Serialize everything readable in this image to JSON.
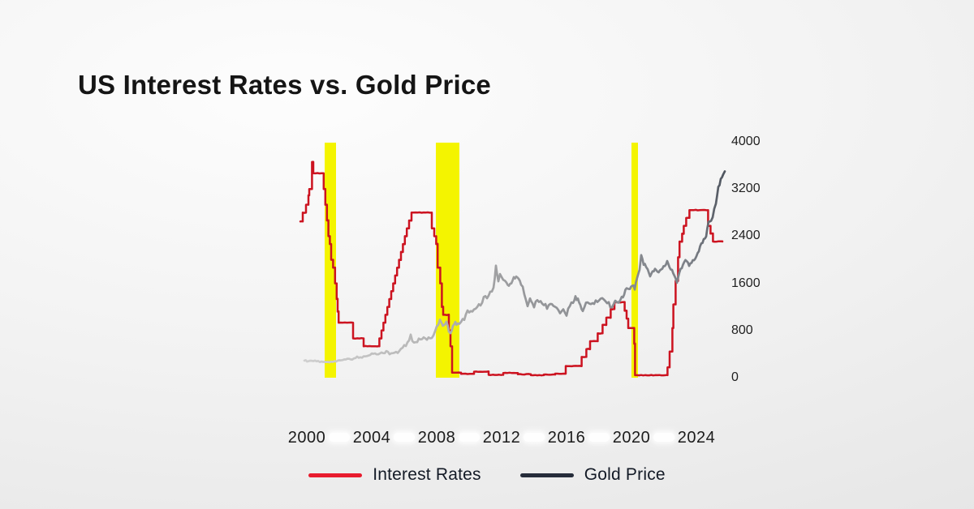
{
  "title": "US Interest Rates vs. Gold Price",
  "colors": {
    "background_edge": "#e2e2e2",
    "background_center": "#fdfdfd",
    "recession_band": "#f4f400",
    "interest_rates_line": "#cc1320",
    "interest_rates_legend": "#e81c2e",
    "gold_legend": "#262c3a",
    "gold_gradient": [
      "#d0d0d0",
      "#b6b6b6",
      "#97989b",
      "#8a8d92",
      "#7c8087",
      "#4e545e"
    ],
    "axis_text": "#1f1f1f",
    "title_text": "#151515"
  },
  "y_axis": {
    "side": "right",
    "labels": [
      "4000",
      "3200",
      "2400",
      "1600",
      "800",
      "0"
    ]
  },
  "x_axis": {
    "labels": [
      "2000",
      "2004",
      "2008",
      "2012",
      "2016",
      "2020",
      "2024"
    ]
  },
  "legend": [
    {
      "label": "Interest Rates",
      "color": "#e81c2e"
    },
    {
      "label": "Gold Price",
      "color": "#262c3a"
    }
  ],
  "chart_data": {
    "type": "line",
    "title": "US Interest Rates vs. Gold Price",
    "xlim": [
      1999.6,
      2025.75
    ],
    "ylim_gold_usd": [
      0,
      4000
    ],
    "hidden_rate_axis_max_pct": 7.5,
    "grid": false,
    "legend_position": "bottom",
    "recession_bands": [
      [
        2001.1,
        2001.8
      ],
      [
        2007.95,
        2009.4
      ],
      [
        2020.0,
        2020.4
      ]
    ],
    "series": [
      {
        "name": "Interest Rates",
        "unit": "percent",
        "style": "step-after",
        "points": [
          [
            1999.6,
            4.97
          ],
          [
            1999.75,
            5.25
          ],
          [
            1999.95,
            5.5
          ],
          [
            2000.1,
            5.8
          ],
          [
            2000.15,
            6.0
          ],
          [
            2000.32,
            6.86
          ],
          [
            2000.4,
            6.5
          ],
          [
            2001.04,
            6.0
          ],
          [
            2001.14,
            5.5
          ],
          [
            2001.24,
            5.0
          ],
          [
            2001.33,
            4.5
          ],
          [
            2001.42,
            4.25
          ],
          [
            2001.5,
            3.75
          ],
          [
            2001.62,
            3.5
          ],
          [
            2001.74,
            3.0
          ],
          [
            2001.84,
            2.5
          ],
          [
            2001.9,
            2.1
          ],
          [
            2001.96,
            1.75
          ],
          [
            2002.85,
            1.25
          ],
          [
            2003.5,
            1.0
          ],
          [
            2004.47,
            1.25
          ],
          [
            2004.6,
            1.5
          ],
          [
            2004.72,
            1.75
          ],
          [
            2004.84,
            2.0
          ],
          [
            2004.96,
            2.25
          ],
          [
            2005.08,
            2.5
          ],
          [
            2005.2,
            2.75
          ],
          [
            2005.32,
            3.0
          ],
          [
            2005.44,
            3.25
          ],
          [
            2005.56,
            3.5
          ],
          [
            2005.68,
            3.75
          ],
          [
            2005.8,
            4.0
          ],
          [
            2005.92,
            4.25
          ],
          [
            2006.04,
            4.5
          ],
          [
            2006.16,
            4.75
          ],
          [
            2006.3,
            5.0
          ],
          [
            2006.45,
            5.25
          ],
          [
            2007.7,
            4.75
          ],
          [
            2007.85,
            4.5
          ],
          [
            2007.97,
            4.25
          ],
          [
            2008.06,
            3.5
          ],
          [
            2008.22,
            3.0
          ],
          [
            2008.32,
            2.25
          ],
          [
            2008.4,
            2.0
          ],
          [
            2008.75,
            1.5
          ],
          [
            2008.85,
            1.0
          ],
          [
            2008.95,
            0.16
          ],
          [
            2009.5,
            0.12
          ],
          [
            2010.3,
            0.19
          ],
          [
            2011.2,
            0.09
          ],
          [
            2012.1,
            0.15
          ],
          [
            2013.0,
            0.11
          ],
          [
            2013.8,
            0.08
          ],
          [
            2014.6,
            0.1
          ],
          [
            2015.3,
            0.13
          ],
          [
            2015.95,
            0.37
          ],
          [
            2016.93,
            0.66
          ],
          [
            2017.22,
            0.91
          ],
          [
            2017.45,
            1.16
          ],
          [
            2017.92,
            1.41
          ],
          [
            2018.22,
            1.68
          ],
          [
            2018.45,
            1.91
          ],
          [
            2018.72,
            2.18
          ],
          [
            2018.95,
            2.4
          ],
          [
            2019.58,
            2.13
          ],
          [
            2019.7,
            1.88
          ],
          [
            2019.8,
            1.58
          ],
          [
            2020.17,
            1.08
          ],
          [
            2020.22,
            0.08
          ],
          [
            2022.22,
            0.33
          ],
          [
            2022.35,
            0.83
          ],
          [
            2022.52,
            1.58
          ],
          [
            2022.58,
            2.33
          ],
          [
            2022.72,
            3.08
          ],
          [
            2022.87,
            3.83
          ],
          [
            2022.96,
            4.33
          ],
          [
            2023.12,
            4.58
          ],
          [
            2023.22,
            4.83
          ],
          [
            2023.37,
            5.08
          ],
          [
            2023.57,
            5.33
          ],
          [
            2024.72,
            4.83
          ],
          [
            2024.87,
            4.58
          ],
          [
            2025.02,
            4.33
          ],
          [
            2025.6,
            4.33
          ]
        ]
      },
      {
        "name": "Gold Price",
        "unit": "usd_per_oz",
        "style": "line",
        "points": [
          [
            1999.85,
            290
          ],
          [
            2000.1,
            283
          ],
          [
            2000.3,
            279
          ],
          [
            2000.5,
            288
          ],
          [
            2000.7,
            274
          ],
          [
            2000.9,
            270
          ],
          [
            2001.1,
            266
          ],
          [
            2001.3,
            260
          ],
          [
            2001.5,
            272
          ],
          [
            2001.7,
            278
          ],
          [
            2001.9,
            279
          ],
          [
            2002.1,
            290
          ],
          [
            2002.3,
            302
          ],
          [
            2002.5,
            318
          ],
          [
            2002.7,
            312
          ],
          [
            2002.9,
            325
          ],
          [
            2003.1,
            350
          ],
          [
            2003.3,
            335
          ],
          [
            2003.5,
            355
          ],
          [
            2003.7,
            370
          ],
          [
            2003.9,
            390
          ],
          [
            2004.1,
            408
          ],
          [
            2004.3,
            395
          ],
          [
            2004.5,
            390
          ],
          [
            2004.7,
            405
          ],
          [
            2004.9,
            438
          ],
          [
            2005.1,
            425
          ],
          [
            2005.3,
            430
          ],
          [
            2005.5,
            428
          ],
          [
            2005.7,
            450
          ],
          [
            2005.9,
            495
          ],
          [
            2006.1,
            550
          ],
          [
            2006.3,
            620
          ],
          [
            2006.4,
            700
          ],
          [
            2006.5,
            630
          ],
          [
            2006.6,
            600
          ],
          [
            2006.8,
            625
          ],
          [
            2007.0,
            640
          ],
          [
            2007.2,
            660
          ],
          [
            2007.4,
            670
          ],
          [
            2007.6,
            660
          ],
          [
            2007.8,
            720
          ],
          [
            2008.0,
            850
          ],
          [
            2008.2,
            960
          ],
          [
            2008.3,
            900
          ],
          [
            2008.45,
            880
          ],
          [
            2008.6,
            930
          ],
          [
            2008.75,
            800
          ],
          [
            2008.85,
            750
          ],
          [
            2009.0,
            880
          ],
          [
            2009.15,
            920
          ],
          [
            2009.3,
            900
          ],
          [
            2009.5,
            950
          ],
          [
            2009.7,
            1000
          ],
          [
            2009.9,
            1120
          ],
          [
            2010.1,
            1100
          ],
          [
            2010.3,
            1150
          ],
          [
            2010.5,
            1200
          ],
          [
            2010.7,
            1250
          ],
          [
            2010.9,
            1350
          ],
          [
            2011.1,
            1360
          ],
          [
            2011.3,
            1440
          ],
          [
            2011.5,
            1520
          ],
          [
            2011.65,
            1880
          ],
          [
            2011.72,
            1750
          ],
          [
            2011.8,
            1650
          ],
          [
            2011.9,
            1780
          ],
          [
            2012.0,
            1720
          ],
          [
            2012.1,
            1650
          ],
          [
            2012.3,
            1620
          ],
          [
            2012.45,
            1580
          ],
          [
            2012.6,
            1610
          ],
          [
            2012.75,
            1720
          ],
          [
            2012.9,
            1700
          ],
          [
            2013.05,
            1660
          ],
          [
            2013.2,
            1590
          ],
          [
            2013.3,
            1560
          ],
          [
            2013.4,
            1400
          ],
          [
            2013.5,
            1290
          ],
          [
            2013.6,
            1230
          ],
          [
            2013.75,
            1320
          ],
          [
            2013.9,
            1250
          ],
          [
            2014.0,
            1220
          ],
          [
            2014.2,
            1310
          ],
          [
            2014.4,
            1290
          ],
          [
            2014.6,
            1260
          ],
          [
            2014.8,
            1180
          ],
          [
            2015.0,
            1280
          ],
          [
            2015.2,
            1190
          ],
          [
            2015.4,
            1200
          ],
          [
            2015.6,
            1100
          ],
          [
            2015.8,
            1140
          ],
          [
            2016.0,
            1070
          ],
          [
            2016.2,
            1240
          ],
          [
            2016.4,
            1290
          ],
          [
            2016.55,
            1360
          ],
          [
            2016.7,
            1330
          ],
          [
            2016.85,
            1220
          ],
          [
            2017.0,
            1150
          ],
          [
            2017.2,
            1250
          ],
          [
            2017.4,
            1260
          ],
          [
            2017.6,
            1250
          ],
          [
            2017.8,
            1290
          ],
          [
            2018.0,
            1330
          ],
          [
            2018.2,
            1340
          ],
          [
            2018.4,
            1300
          ],
          [
            2018.6,
            1250
          ],
          [
            2018.8,
            1190
          ],
          [
            2019.0,
            1290
          ],
          [
            2019.2,
            1300
          ],
          [
            2019.4,
            1350
          ],
          [
            2019.55,
            1420
          ],
          [
            2019.7,
            1500
          ],
          [
            2019.9,
            1480
          ],
          [
            2020.05,
            1590
          ],
          [
            2020.2,
            1480
          ],
          [
            2020.35,
            1700
          ],
          [
            2020.5,
            1850
          ],
          [
            2020.6,
            2060
          ],
          [
            2020.75,
            1930
          ],
          [
            2020.9,
            1880
          ],
          [
            2021.0,
            1850
          ],
          [
            2021.15,
            1720
          ],
          [
            2021.3,
            1790
          ],
          [
            2021.45,
            1820
          ],
          [
            2021.6,
            1780
          ],
          [
            2021.75,
            1800
          ],
          [
            2021.9,
            1830
          ],
          [
            2022.05,
            1900
          ],
          [
            2022.2,
            1950
          ],
          [
            2022.35,
            1880
          ],
          [
            2022.5,
            1800
          ],
          [
            2022.65,
            1720
          ],
          [
            2022.8,
            1640
          ],
          [
            2022.95,
            1800
          ],
          [
            2023.1,
            1880
          ],
          [
            2023.25,
            1990
          ],
          [
            2023.4,
            1960
          ],
          [
            2023.55,
            1920
          ],
          [
            2023.7,
            1940
          ],
          [
            2023.85,
            1990
          ],
          [
            2024.0,
            2040
          ],
          [
            2024.15,
            2160
          ],
          [
            2024.3,
            2300
          ],
          [
            2024.45,
            2330
          ],
          [
            2024.6,
            2420
          ],
          [
            2024.75,
            2650
          ],
          [
            2024.9,
            2640
          ],
          [
            2025.0,
            2750
          ],
          [
            2025.1,
            2890
          ],
          [
            2025.2,
            2950
          ],
          [
            2025.35,
            3240
          ],
          [
            2025.5,
            3350
          ],
          [
            2025.65,
            3420
          ],
          [
            2025.75,
            3500
          ]
        ]
      }
    ]
  }
}
